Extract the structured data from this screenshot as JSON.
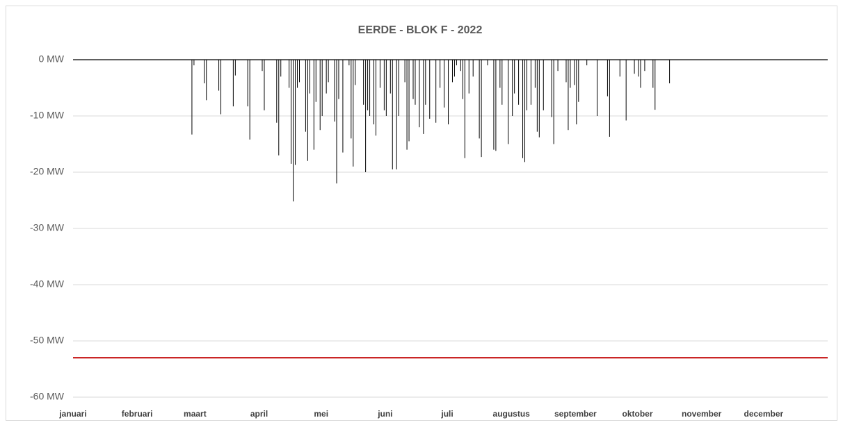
{
  "chart_data": {
    "type": "bar",
    "title": "EERDE - BLOK F - 2022",
    "categories": [
      "januari",
      null,
      null,
      null,
      null,
      null,
      null,
      null,
      null,
      null,
      null,
      null,
      null,
      null,
      null,
      null,
      null,
      null,
      null,
      null,
      null,
      null,
      null,
      null,
      null,
      null,
      null,
      null,
      null,
      null,
      null,
      "februari",
      null,
      null,
      null,
      null,
      null,
      null,
      null,
      null,
      null,
      null,
      null,
      null,
      null,
      null,
      null,
      null,
      null,
      null,
      null,
      null,
      null,
      null,
      null,
      null,
      null,
      null,
      null,
      "maart",
      null,
      null,
      null,
      null,
      null,
      null,
      null,
      null,
      null,
      null,
      null,
      null,
      null,
      null,
      null,
      null,
      null,
      null,
      null,
      null,
      null,
      null,
      null,
      null,
      null,
      null,
      null,
      null,
      null,
      null,
      "april",
      null,
      null,
      null,
      null,
      null,
      null,
      null,
      null,
      null,
      null,
      null,
      null,
      null,
      null,
      null,
      null,
      null,
      null,
      null,
      null,
      null,
      null,
      null,
      null,
      null,
      null,
      null,
      null,
      null,
      "mei",
      null,
      null,
      null,
      null,
      null,
      null,
      null,
      null,
      null,
      null,
      null,
      null,
      null,
      null,
      null,
      null,
      null,
      null,
      null,
      null,
      null,
      null,
      null,
      null,
      null,
      null,
      null,
      null,
      null,
      null,
      "juni",
      null,
      null,
      null,
      null,
      null,
      null,
      null,
      null,
      null,
      null,
      null,
      null,
      null,
      null,
      null,
      null,
      null,
      null,
      null,
      null,
      null,
      null,
      null,
      null,
      null,
      null,
      null,
      null,
      null,
      "juli",
      null,
      null,
      null,
      null,
      null,
      null,
      null,
      null,
      null,
      null,
      null,
      null,
      null,
      null,
      null,
      null,
      null,
      null,
      null,
      null,
      null,
      null,
      null,
      null,
      null,
      null,
      null,
      null,
      null,
      null,
      "augustus",
      null,
      null,
      null,
      null,
      null,
      null,
      null,
      null,
      null,
      null,
      null,
      null,
      null,
      null,
      null,
      null,
      null,
      null,
      null,
      null,
      null,
      null,
      null,
      null,
      null,
      null,
      null,
      null,
      null,
      null,
      "september",
      null,
      null,
      null,
      null,
      null,
      null,
      null,
      null,
      null,
      null,
      null,
      null,
      null,
      null,
      null,
      null,
      null,
      null,
      null,
      null,
      null,
      null,
      null,
      null,
      null,
      null,
      null,
      null,
      null,
      "oktober",
      null,
      null,
      null,
      null,
      null,
      null,
      null,
      null,
      null,
      null,
      null,
      null,
      null,
      null,
      null,
      null,
      null,
      null,
      null,
      null,
      null,
      null,
      null,
      null,
      null,
      null,
      null,
      null,
      null,
      null,
      "november",
      null,
      null,
      null,
      null,
      null,
      null,
      null,
      null,
      null,
      null,
      null,
      null,
      null,
      null,
      null,
      null,
      null,
      null,
      null,
      null,
      null,
      null,
      null,
      null,
      null,
      null,
      null,
      null,
      null,
      "december",
      null,
      null,
      null,
      null,
      null,
      null,
      null,
      null,
      null,
      null,
      null,
      null,
      null,
      null,
      null,
      null,
      null,
      null,
      null,
      null,
      null,
      null,
      null,
      null,
      null,
      null,
      null,
      null,
      null,
      null
    ],
    "values": [
      0,
      0,
      0,
      0,
      0,
      0,
      0,
      0,
      0,
      0,
      0,
      0,
      0,
      0,
      0,
      0,
      0,
      0,
      0,
      0,
      0,
      0,
      0,
      0,
      0,
      0,
      0,
      0,
      0,
      0,
      0,
      0,
      0,
      0,
      0,
      0,
      0,
      0,
      0,
      0,
      0,
      0,
      0,
      0,
      0,
      0,
      0,
      0,
      0,
      0,
      0,
      0,
      0,
      0,
      0,
      0,
      0,
      -13.3,
      -1,
      0,
      0,
      0,
      0,
      -4.2,
      -7.2,
      0,
      0,
      0,
      0,
      0,
      -5.5,
      -9.7,
      0,
      0,
      0,
      0,
      0,
      -8.3,
      -2.8,
      0,
      0,
      0,
      0,
      0,
      -8.3,
      -14.2,
      0,
      0,
      0,
      0,
      0,
      -2,
      -9,
      0,
      0,
      0,
      0,
      0,
      -11.2,
      -17,
      -3,
      0,
      0,
      0,
      -5,
      -18.5,
      -25.2,
      -18.7,
      -5,
      -4,
      0,
      0,
      -12.8,
      -18,
      -6,
      0,
      -16,
      -7.5,
      0,
      -12.5,
      -10,
      0,
      -6,
      -4,
      0,
      0,
      -11,
      -22,
      -7,
      0,
      -16.5,
      0,
      0,
      -1,
      -14,
      -19,
      -4.5,
      0,
      0,
      0,
      -8,
      -20,
      -9,
      -10,
      0,
      -11.5,
      -13.5,
      0,
      -5,
      0,
      -9,
      -10,
      0,
      -6,
      -19.5,
      0,
      -19.5,
      -10,
      0,
      0,
      -4,
      -16,
      -14.5,
      0,
      -7,
      -8,
      0,
      -12,
      0,
      -13.2,
      -8,
      0,
      -10.5,
      0,
      0,
      -11.2,
      0,
      -5,
      0,
      -8.5,
      0,
      -11.5,
      0,
      -4,
      -3,
      -1,
      0,
      -2,
      -7,
      -17.5,
      0,
      -6,
      0,
      -3,
      0,
      0,
      -14,
      -17.3,
      0,
      0,
      -1,
      0,
      0,
      -16,
      -16.2,
      0,
      -5,
      -8,
      0,
      0,
      -15,
      0,
      -10,
      -6,
      0,
      -8,
      0,
      -17.5,
      -18.2,
      -9,
      0,
      -8,
      0,
      -5,
      -12.8,
      -13.8,
      0,
      -9,
      0,
      0,
      0,
      -10.2,
      -15,
      0,
      -2,
      0,
      0,
      0,
      -4,
      -12.5,
      -5,
      0,
      -4.5,
      -11.5,
      -7.5,
      0,
      0,
      0,
      -1,
      0,
      0,
      0,
      0,
      -10,
      0,
      0,
      0,
      0,
      -6.5,
      -13.7,
      0,
      0,
      0,
      0,
      -3,
      0,
      0,
      -10.8,
      0,
      0,
      0,
      -2.5,
      0,
      -3,
      -5,
      0,
      -2,
      0,
      0,
      0,
      -5,
      -8.9,
      0,
      0,
      0,
      0,
      0,
      0,
      -4.2,
      0,
      0,
      0,
      0,
      0,
      0,
      0,
      0,
      0,
      0,
      0,
      0,
      0,
      0,
      0,
      0,
      0,
      0,
      0,
      0,
      0,
      0,
      0,
      0,
      0,
      0,
      0,
      0,
      0,
      0,
      0,
      0,
      0,
      0,
      0,
      0,
      0,
      0,
      0,
      0,
      0,
      0,
      0,
      0,
      0,
      0,
      0,
      0,
      0,
      0,
      0,
      0,
      0,
      0,
      0,
      0,
      0,
      0,
      0,
      0,
      0,
      0,
      0,
      0,
      0,
      0,
      0,
      0,
      0,
      0,
      0,
      0,
      0,
      0,
      0,
      0
    ],
    "color": "#000000",
    "ylim": [
      -60,
      0
    ],
    "yticks": [
      {
        "value": 0,
        "label": "0 MW"
      },
      {
        "value": -10,
        "label": "-10 MW"
      },
      {
        "value": -20,
        "label": "-20 MW"
      },
      {
        "value": -30,
        "label": "-30 MW"
      },
      {
        "value": -40,
        "label": "-40 MW"
      },
      {
        "value": -50,
        "label": "-50 MW"
      },
      {
        "value": -60,
        "label": "-60 MW"
      }
    ],
    "grid": true,
    "reference_line": {
      "value": -53,
      "color": "#c00000"
    }
  }
}
